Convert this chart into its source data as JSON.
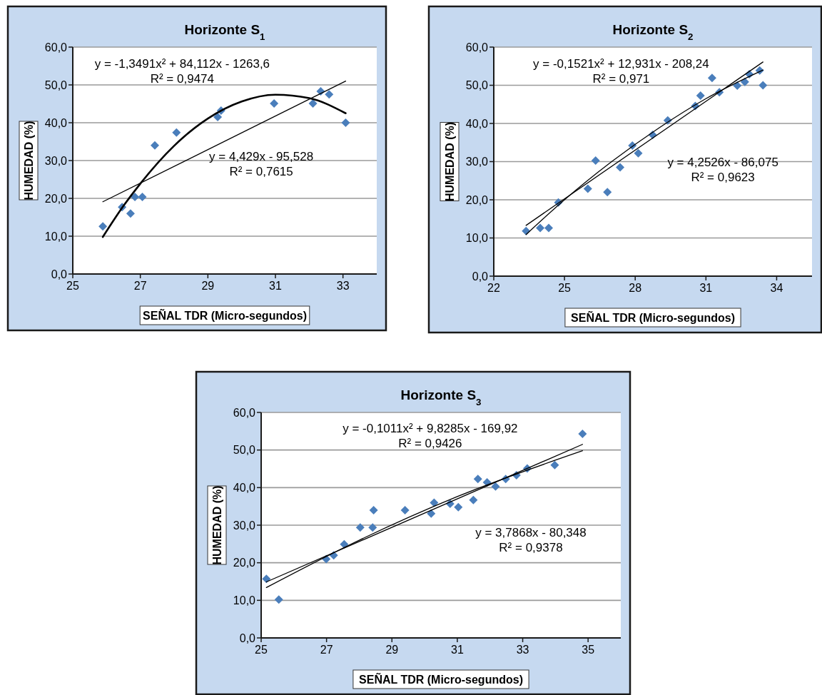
{
  "chart_data": [
    {
      "type": "scatter",
      "title": "Horizonte S$_{1}$",
      "xlabel": "SEÑAL TDR (Micro-segundos)",
      "ylabel": "HUMEDAD (%)",
      "xlim": [
        25,
        34
      ],
      "xticks": [
        25,
        27,
        29,
        31,
        33
      ],
      "ylim": [
        0,
        60
      ],
      "yticks": [
        {
          "value": 0,
          "label": "0,0"
        },
        {
          "value": 10,
          "label": "10,0"
        },
        {
          "value": 20,
          "label": "20,0"
        },
        {
          "value": 30,
          "label": "30,0"
        },
        {
          "value": 40,
          "label": "40,0"
        },
        {
          "value": 50,
          "label": "50,0"
        },
        {
          "value": 60,
          "label": "60,0"
        }
      ],
      "grid": "y",
      "annotations": [
        "y = -1,3491x² + 84,112x - 1263,6",
        "R² = 0,9474",
        "y = 4,429x - 95,528",
        "R² = 0,7615"
      ],
      "series": [
        {
          "color": "#4a7ebb",
          "marker": "diamond",
          "x": [
            25.89,
            26.46,
            26.71,
            26.84,
            27.06,
            27.43,
            28.07,
            29.29,
            29.39,
            30.96,
            32.11,
            32.34,
            32.59,
            33.08
          ],
          "values": [
            12.6,
            17.7,
            16.0,
            20.4,
            20.4,
            34.0,
            37.4,
            41.5,
            43.2,
            45.1,
            45.1,
            48.3,
            47.5,
            40.0
          ]
        },
        {
          "type": "line",
          "color": "#000000",
          "x": [
            25.89,
            26.5,
            27,
            28,
            29,
            30,
            31,
            32,
            33.08
          ],
          "values": [
            9.8,
            18.0,
            23.9,
            33.9,
            41.1,
            45.6,
            47.4,
            46.5,
            42.5
          ]
        },
        {
          "type": "line",
          "color": "#000000",
          "x": [
            25.89,
            33.08
          ],
          "values": [
            19.1,
            51.0
          ]
        }
      ]
    },
    {
      "type": "scatter",
      "title": "Horizonte S$_{2}$",
      "xlabel": "SEÑAL TDR  (Micro-segundos)",
      "ylabel": "HUMEDAD (%)",
      "xlim": [
        22,
        35.5
      ],
      "xticks": [
        22,
        25,
        28,
        31,
        34
      ],
      "ylim": [
        0,
        60
      ],
      "yticks": [
        {
          "value": 0,
          "label": "0,0"
        },
        {
          "value": 10,
          "label": "10,0"
        },
        {
          "value": 20,
          "label": "20,0"
        },
        {
          "value": 30,
          "label": "30,0"
        },
        {
          "value": 40,
          "label": "40,0"
        },
        {
          "value": 50,
          "label": "50,0"
        },
        {
          "value": 60,
          "label": "60,0"
        }
      ],
      "grid": "y",
      "annotations": [
        "y = -0,1521x² + 12,931x - 208,24",
        "R² = 0,971",
        "y = 4,2526x - 86,075",
        "R² = 0,9623"
      ],
      "series": [
        {
          "color": "#4a7ebb",
          "marker": "diamond",
          "x": [
            23.37,
            23.97,
            24.33,
            24.74,
            25.99,
            26.32,
            26.82,
            27.36,
            27.88,
            28.13,
            28.74,
            29.38,
            30.55,
            30.77,
            31.26,
            31.57,
            32.33,
            32.65,
            32.84,
            33.28,
            33.42
          ],
          "values": [
            11.8,
            12.6,
            12.6,
            19.3,
            22.9,
            30.3,
            22.0,
            28.5,
            34.2,
            32.2,
            37.0,
            40.8,
            44.6,
            47.3,
            51.9,
            48.2,
            49.9,
            50.9,
            52.9,
            53.9,
            50.0
          ]
        },
        {
          "type": "line",
          "color": "#000000",
          "x": [
            23.37,
            25,
            27,
            29,
            31,
            33.42
          ],
          "values": [
            10.9,
            20.0,
            30.0,
            38.8,
            46.5,
            54.0
          ]
        },
        {
          "type": "line",
          "color": "#000000",
          "x": [
            23.37,
            33.42
          ],
          "values": [
            13.3,
            56.1
          ]
        }
      ]
    },
    {
      "type": "scatter",
      "title": "Horizonte S$_{3}$",
      "xlabel": "SEÑAL TDR  (Micro-segundos)",
      "ylabel": "HUMEDAD (%)",
      "xlim": [
        25,
        36
      ],
      "xticks": [
        25,
        27,
        29,
        31,
        33,
        35
      ],
      "ylim": [
        0,
        60
      ],
      "yticks": [
        {
          "value": 0,
          "label": "0,0"
        },
        {
          "value": 10,
          "label": "10,0"
        },
        {
          "value": 20,
          "label": "20,0"
        },
        {
          "value": 30,
          "label": "30,0"
        },
        {
          "value": 40,
          "label": "40,0"
        },
        {
          "value": 50,
          "label": "50,0"
        },
        {
          "value": 60,
          "label": "60,0"
        }
      ],
      "grid": "y",
      "annotations": [
        "y = -0,1011x² + 9,8285x - 169,92",
        "R² = 0,9426",
        "y = 3,7868x - 80,348",
        "R² = 0,9378"
      ],
      "series": [
        {
          "color": "#4a7ebb",
          "marker": "diamond",
          "x": [
            25.16,
            25.54,
            26.99,
            27.22,
            27.54,
            28.03,
            28.41,
            28.44,
            29.4,
            30.2,
            30.29,
            30.78,
            31.03,
            31.49,
            31.63,
            31.91,
            32.17,
            32.48,
            32.81,
            33.14,
            33.98,
            34.83
          ],
          "values": [
            15.7,
            10.2,
            21.0,
            22.0,
            24.9,
            29.4,
            29.4,
            34.0,
            34.0,
            33.1,
            36.0,
            35.7,
            34.8,
            36.7,
            42.3,
            41.4,
            40.3,
            42.3,
            43.3,
            45.1,
            46.0,
            54.3
          ]
        },
        {
          "type": "line",
          "color": "#000000",
          "x": [
            25.16,
            28,
            31,
            34.83
          ],
          "values": [
            13.4,
            26.0,
            37.6,
            49.8
          ]
        },
        {
          "type": "line",
          "color": "#000000",
          "x": [
            25.16,
            34.83
          ],
          "values": [
            14.9,
            51.5
          ]
        }
      ]
    }
  ]
}
